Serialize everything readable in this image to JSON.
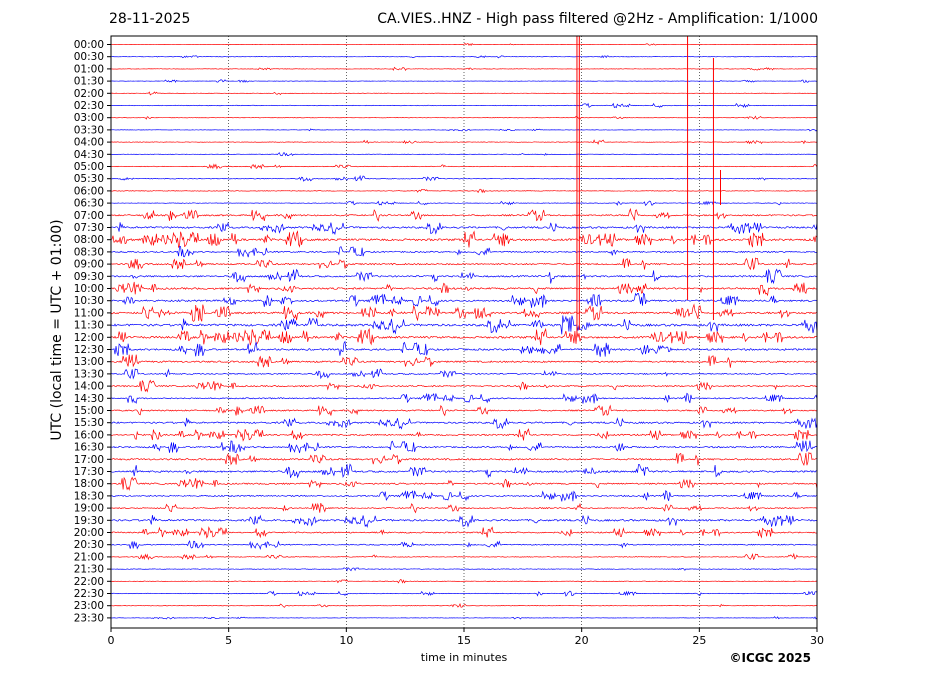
{
  "header": {
    "date": "28-11-2025",
    "title": "CA.VIES..HNZ - High pass filtered @2Hz - Amplification: 1/1000"
  },
  "footer": {
    "copyright": "©ICGC 2025"
  },
  "colors": {
    "red": "#ff0000",
    "blue": "#0000ff",
    "axis": "#000000"
  },
  "chart_data": {
    "type": "line",
    "title": "CA.VIES..HNZ - High pass filtered @2Hz - Amplification: 1/1000",
    "xlabel": "time in minutes",
    "ylabel": "UTC (local time = UTC + 01:00)",
    "xlim": [
      0,
      30
    ],
    "xticks": [
      "0",
      "5",
      "10",
      "15",
      "20",
      "25",
      "30"
    ],
    "xtick_values": [
      0,
      5,
      10,
      15,
      20,
      25,
      30
    ],
    "grid": "vertical dotted at 5, 10, 15, 20, 25",
    "series_colors": [
      "red",
      "blue"
    ],
    "rows": [
      {
        "label": "00:00",
        "level": 0.5
      },
      {
        "label": "00:30",
        "level": 0.5
      },
      {
        "label": "01:00",
        "level": 0.6
      },
      {
        "label": "01:30",
        "level": 0.5
      },
      {
        "label": "02:00",
        "level": 0.5
      },
      {
        "label": "02:30",
        "level": 0.8
      },
      {
        "label": "03:00",
        "level": 0.5
      },
      {
        "label": "03:30",
        "level": 0.5
      },
      {
        "label": "04:00",
        "level": 0.7
      },
      {
        "label": "04:30",
        "level": 0.6
      },
      {
        "label": "05:00",
        "level": 0.8
      },
      {
        "label": "05:30",
        "level": 0.9
      },
      {
        "label": "06:00",
        "level": 0.8
      },
      {
        "label": "06:30",
        "level": 0.7
      },
      {
        "label": "07:00",
        "level": 2.0
      },
      {
        "label": "07:30",
        "level": 2.4
      },
      {
        "label": "08:00",
        "level": 2.8
      },
      {
        "label": "08:30",
        "level": 1.8
      },
      {
        "label": "09:00",
        "level": 2.0
      },
      {
        "label": "09:30",
        "level": 2.2
      },
      {
        "label": "10:00",
        "level": 2.4
      },
      {
        "label": "10:30",
        "level": 2.3
      },
      {
        "label": "11:00",
        "level": 2.6
      },
      {
        "label": "11:30",
        "level": 3.0
      },
      {
        "label": "12:00",
        "level": 2.8
      },
      {
        "label": "12:30",
        "level": 2.4
      },
      {
        "label": "13:00",
        "level": 2.2
      },
      {
        "label": "13:30",
        "level": 1.6
      },
      {
        "label": "14:00",
        "level": 1.8
      },
      {
        "label": "14:30",
        "level": 1.7
      },
      {
        "label": "15:00",
        "level": 1.8
      },
      {
        "label": "15:30",
        "level": 2.2
      },
      {
        "label": "16:00",
        "level": 2.0
      },
      {
        "label": "16:30",
        "level": 2.0
      },
      {
        "label": "17:00",
        "level": 2.2
      },
      {
        "label": "17:30",
        "level": 2.4
      },
      {
        "label": "18:00",
        "level": 2.0
      },
      {
        "label": "18:30",
        "level": 1.8
      },
      {
        "label": "19:00",
        "level": 1.6
      },
      {
        "label": "19:30",
        "level": 2.4
      },
      {
        "label": "20:00",
        "level": 1.8
      },
      {
        "label": "20:30",
        "level": 1.4
      },
      {
        "label": "21:00",
        "level": 0.9
      },
      {
        "label": "21:30",
        "level": 0.8
      },
      {
        "label": "22:00",
        "level": 0.8
      },
      {
        "label": "22:30",
        "level": 0.8
      },
      {
        "label": "23:00",
        "level": 0.6
      },
      {
        "label": "23:30",
        "level": 0.5
      }
    ]
  }
}
